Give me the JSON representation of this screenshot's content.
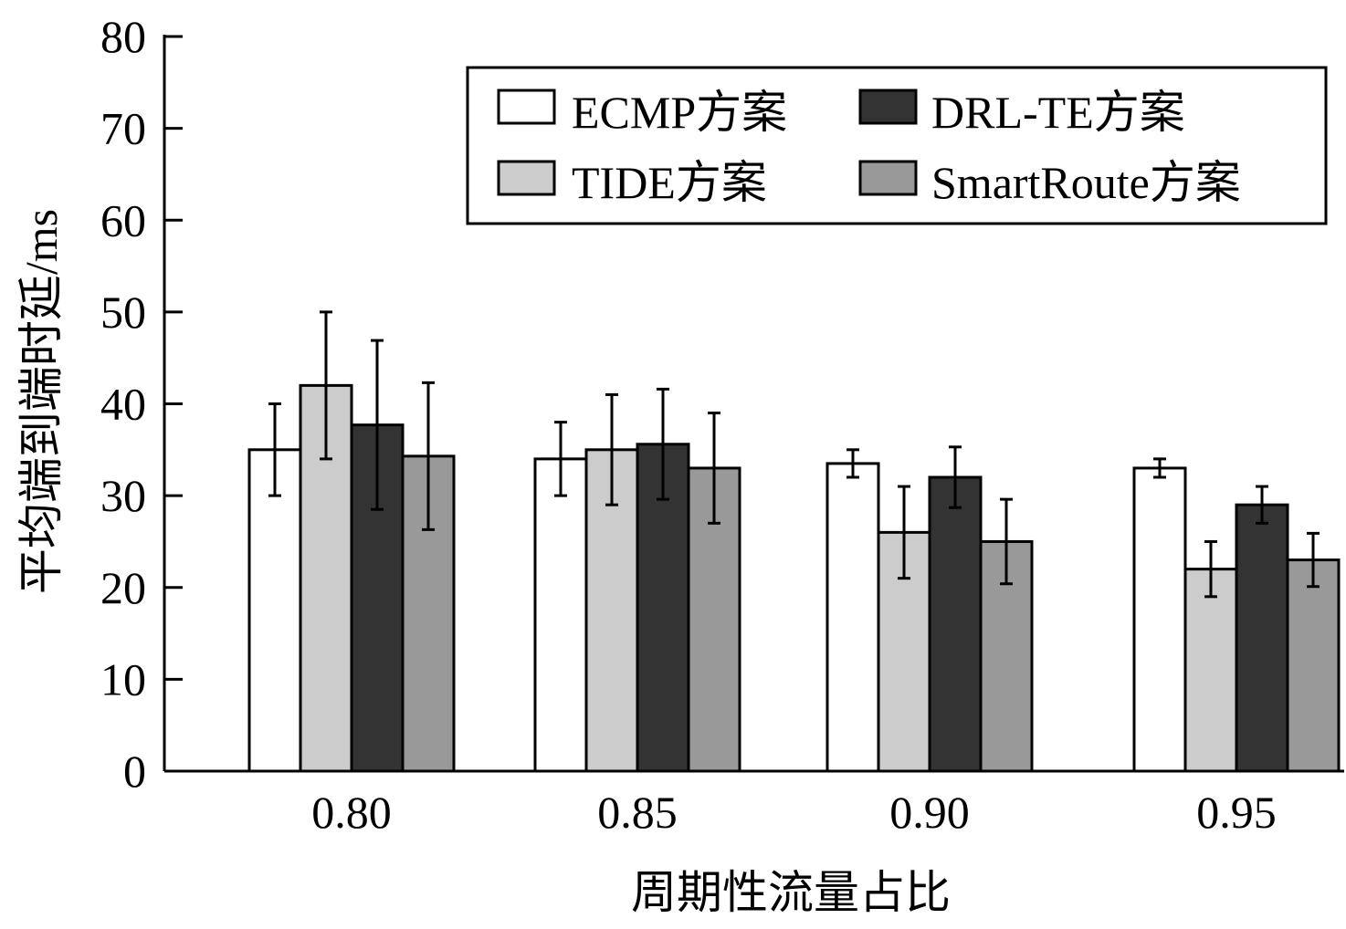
{
  "chart_data": {
    "type": "bar",
    "title": "",
    "xlabel": "周期性流量占比",
    "ylabel": "平均端到端时延/ms",
    "categories": [
      "0.80",
      "0.85",
      "0.90",
      "0.95"
    ],
    "ylim": [
      0,
      80
    ],
    "yticks": [
      0,
      10,
      20,
      30,
      40,
      50,
      60,
      70,
      80
    ],
    "ytick_labels": [
      "0",
      "10",
      "20",
      "30",
      "40",
      "50",
      "60",
      "70",
      "80"
    ],
    "grid": false,
    "legend_position": "top-right",
    "series": [
      {
        "name": "ECMP方案",
        "color": "#ffffff",
        "values": [
          35,
          34,
          33.5,
          33
        ],
        "errors": [
          5,
          4,
          1.5,
          1
        ]
      },
      {
        "name": "TIDE方案",
        "color": "#cccccc",
        "values": [
          42,
          35,
          26,
          22
        ],
        "errors": [
          8,
          6,
          5,
          3
        ]
      },
      {
        "name": "DRL-TE方案",
        "color": "#333333",
        "values": [
          37.7,
          35.6,
          32,
          29
        ],
        "errors": [
          9.2,
          6,
          3.3,
          2
        ]
      },
      {
        "name": "SmartRoute方案",
        "color": "#999999",
        "values": [
          34.3,
          33,
          25,
          23
        ],
        "errors": [
          8,
          6,
          4.6,
          2.9
        ]
      }
    ]
  }
}
